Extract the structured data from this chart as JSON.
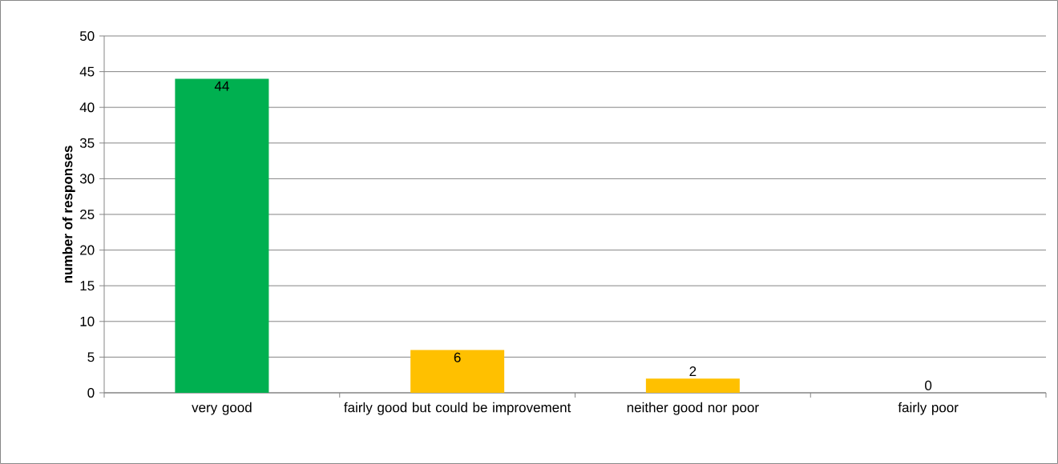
{
  "chart_data": {
    "type": "bar",
    "ylabel": "number of responses",
    "categories": [
      "very good",
      "fairly good but could be improvement",
      "neither good nor poor",
      "fairly poor"
    ],
    "values": [
      44,
      6,
      2,
      0
    ],
    "colors": [
      "#00b050",
      "#ffc000",
      "#ffc000",
      "#ffc000"
    ],
    "ylim": [
      0,
      50
    ],
    "yticks": [
      0,
      5,
      10,
      15,
      20,
      25,
      30,
      35,
      40,
      45,
      50
    ],
    "grid": "y",
    "data_labels": true
  }
}
